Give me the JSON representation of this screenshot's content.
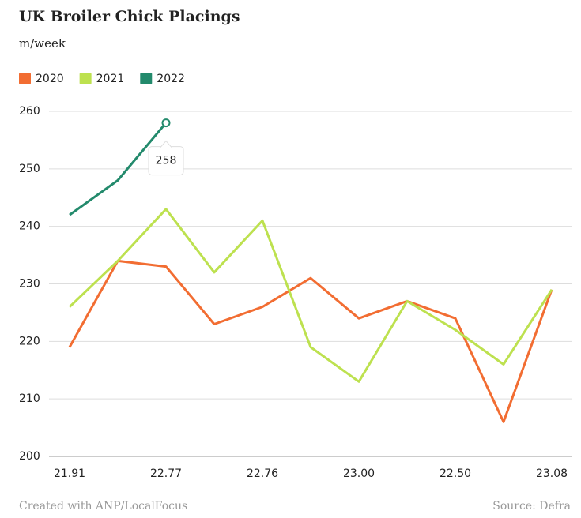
{
  "chart_data": {
    "type": "line",
    "title": "UK Broiler Chick Placings",
    "subtitle": "m/week",
    "credit": "Created with ANP/LocalFocus",
    "source": "Source: Defra",
    "categories": [
      "21.91",
      null,
      "22.77",
      null,
      "22.76",
      null,
      "23.00",
      null,
      "22.50",
      null,
      "23.08"
    ],
    "series": [
      {
        "name": "2020",
        "color": "#f26d32",
        "values": [
          219,
          234,
          233,
          223,
          226,
          231,
          224,
          227,
          224,
          206,
          229
        ]
      },
      {
        "name": "2021",
        "color": "#bde14f",
        "values": [
          226,
          234,
          243,
          232,
          241,
          219,
          213,
          227,
          222,
          216,
          229
        ]
      },
      {
        "name": "2022",
        "color": "#238a6c",
        "values": [
          242,
          248,
          258,
          null,
          null,
          null,
          null,
          null,
          null,
          null,
          null
        ]
      }
    ],
    "ylim": [
      200,
      260
    ],
    "yticks": [
      200,
      210,
      220,
      230,
      240,
      250,
      260
    ],
    "grid": true,
    "legend": "top-left"
  }
}
